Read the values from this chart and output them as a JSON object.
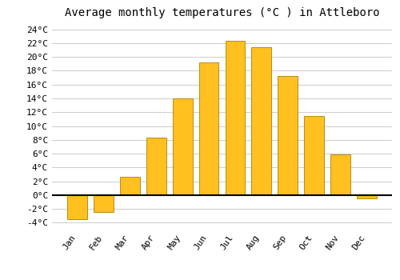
{
  "title": "Average monthly temperatures (°C ) in Attleboro",
  "months": [
    "Jan",
    "Feb",
    "Mar",
    "Apr",
    "May",
    "Jun",
    "Jul",
    "Aug",
    "Sep",
    "Oct",
    "Nov",
    "Dec"
  ],
  "values": [
    -3.5,
    -2.5,
    2.7,
    8.3,
    14.0,
    19.2,
    22.3,
    21.4,
    17.2,
    11.4,
    5.9,
    -0.5
  ],
  "bar_color": "#FFC020",
  "bar_edge_color": "#B08000",
  "background_color": "#FFFFFF",
  "grid_color": "#CCCCCC",
  "ylim": [
    -5,
    25
  ],
  "yticks": [
    -4,
    -2,
    0,
    2,
    4,
    6,
    8,
    10,
    12,
    14,
    16,
    18,
    20,
    22,
    24
  ],
  "zero_line_color": "#000000",
  "title_fontsize": 10,
  "tick_fontsize": 8
}
